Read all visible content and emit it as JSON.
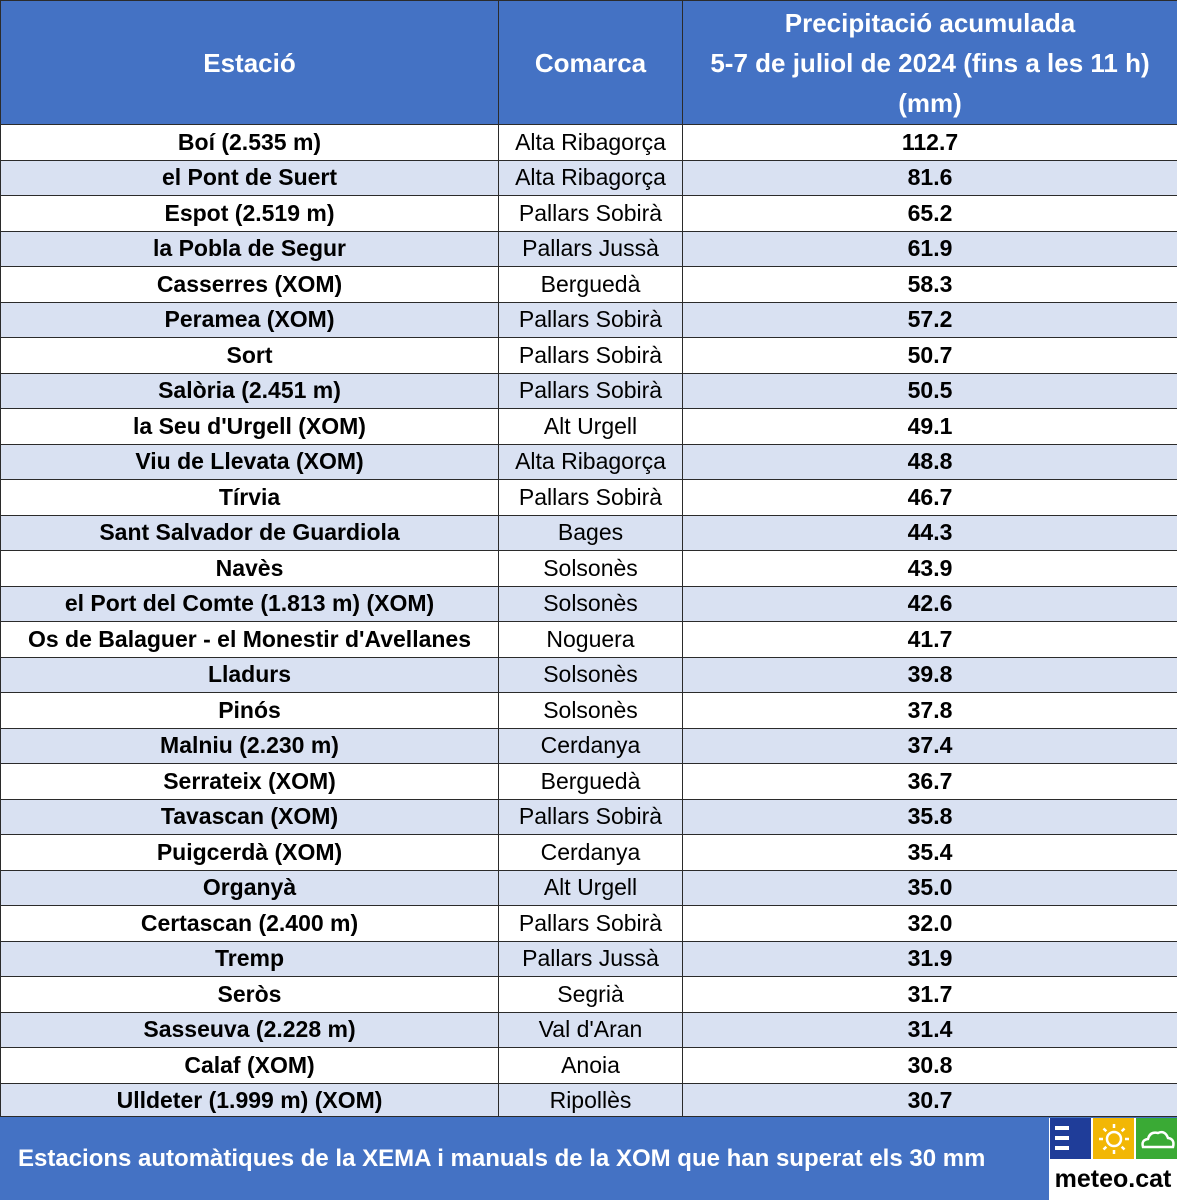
{
  "header": {
    "station": "Estació",
    "region": "Comarca",
    "precip_line1": "Precipitació acumulada",
    "precip_line2": "5-7 de juliol de 2024 (fins a les 11 h)",
    "precip_line3": "(mm)"
  },
  "rows": [
    {
      "station": "Boí (2.535 m)",
      "region": "Alta Ribagorça",
      "value": "112.7"
    },
    {
      "station": "el Pont de Suert",
      "region": "Alta Ribagorça",
      "value": "81.6"
    },
    {
      "station": "Espot (2.519 m)",
      "region": "Pallars Sobirà",
      "value": "65.2"
    },
    {
      "station": "la Pobla de Segur",
      "region": "Pallars Jussà",
      "value": "61.9"
    },
    {
      "station": "Casserres (XOM)",
      "region": "Berguedà",
      "value": "58.3"
    },
    {
      "station": "Peramea (XOM)",
      "region": "Pallars Sobirà",
      "value": "57.2"
    },
    {
      "station": "Sort",
      "region": "Pallars Sobirà",
      "value": "50.7"
    },
    {
      "station": "Salòria (2.451 m)",
      "region": "Pallars Sobirà",
      "value": "50.5"
    },
    {
      "station": "la Seu d'Urgell (XOM)",
      "region": "Alt Urgell",
      "value": "49.1"
    },
    {
      "station": "Viu de Llevata (XOM)",
      "region": "Alta Ribagorça",
      "value": "48.8"
    },
    {
      "station": "Tírvia",
      "region": "Pallars Sobirà",
      "value": "46.7"
    },
    {
      "station": "Sant Salvador de Guardiola",
      "region": "Bages",
      "value": "44.3"
    },
    {
      "station": "Navès",
      "region": "Solsonès",
      "value": "43.9"
    },
    {
      "station": "el Port del Comte (1.813 m) (XOM)",
      "region": "Solsonès",
      "value": "42.6"
    },
    {
      "station": "Os de Balaguer - el Monestir d'Avellanes",
      "region": "Noguera",
      "value": "41.7"
    },
    {
      "station": "Lladurs",
      "region": "Solsonès",
      "value": "39.8"
    },
    {
      "station": "Pinós",
      "region": "Solsonès",
      "value": "37.8"
    },
    {
      "station": "Malniu (2.230 m)",
      "region": "Cerdanya",
      "value": "37.4"
    },
    {
      "station": "Serrateix (XOM)",
      "region": "Berguedà",
      "value": "36.7"
    },
    {
      "station": "Tavascan (XOM)",
      "region": "Pallars Sobirà",
      "value": "35.8"
    },
    {
      "station": "Puigcerdà (XOM)",
      "region": "Cerdanya",
      "value": "35.4"
    },
    {
      "station": "Organyà",
      "region": "Alt Urgell",
      "value": "35.0"
    },
    {
      "station": "Certascan (2.400 m)",
      "region": "Pallars Sobirà",
      "value": "32.0"
    },
    {
      "station": "Tremp",
      "region": "Pallars Jussà",
      "value": "31.9"
    },
    {
      "station": "Seròs",
      "region": "Segrià",
      "value": "31.7"
    },
    {
      "station": "Sasseuva (2.228 m)",
      "region": "Val d'Aran",
      "value": "31.4"
    },
    {
      "station": "Calaf (XOM)",
      "region": "Anoia",
      "value": "30.8"
    },
    {
      "station": "Ulldeter (1.999 m) (XOM)",
      "region": "Ripollès",
      "value": "30.7"
    }
  ],
  "footer": {
    "caption": "Estacions automàtiques de la XEMA i manuals de la XOM que han superat els 30 mm",
    "logo_text": "meteo.cat"
  },
  "colors": {
    "header_bg": "#4472c4",
    "stripe": "#d9e1f2",
    "logo_blue": "#1f3d99",
    "logo_yellow": "#f2b705",
    "logo_green": "#3aaa35"
  },
  "icons": [
    "bars-icon",
    "sun-icon",
    "cloud-icon"
  ]
}
